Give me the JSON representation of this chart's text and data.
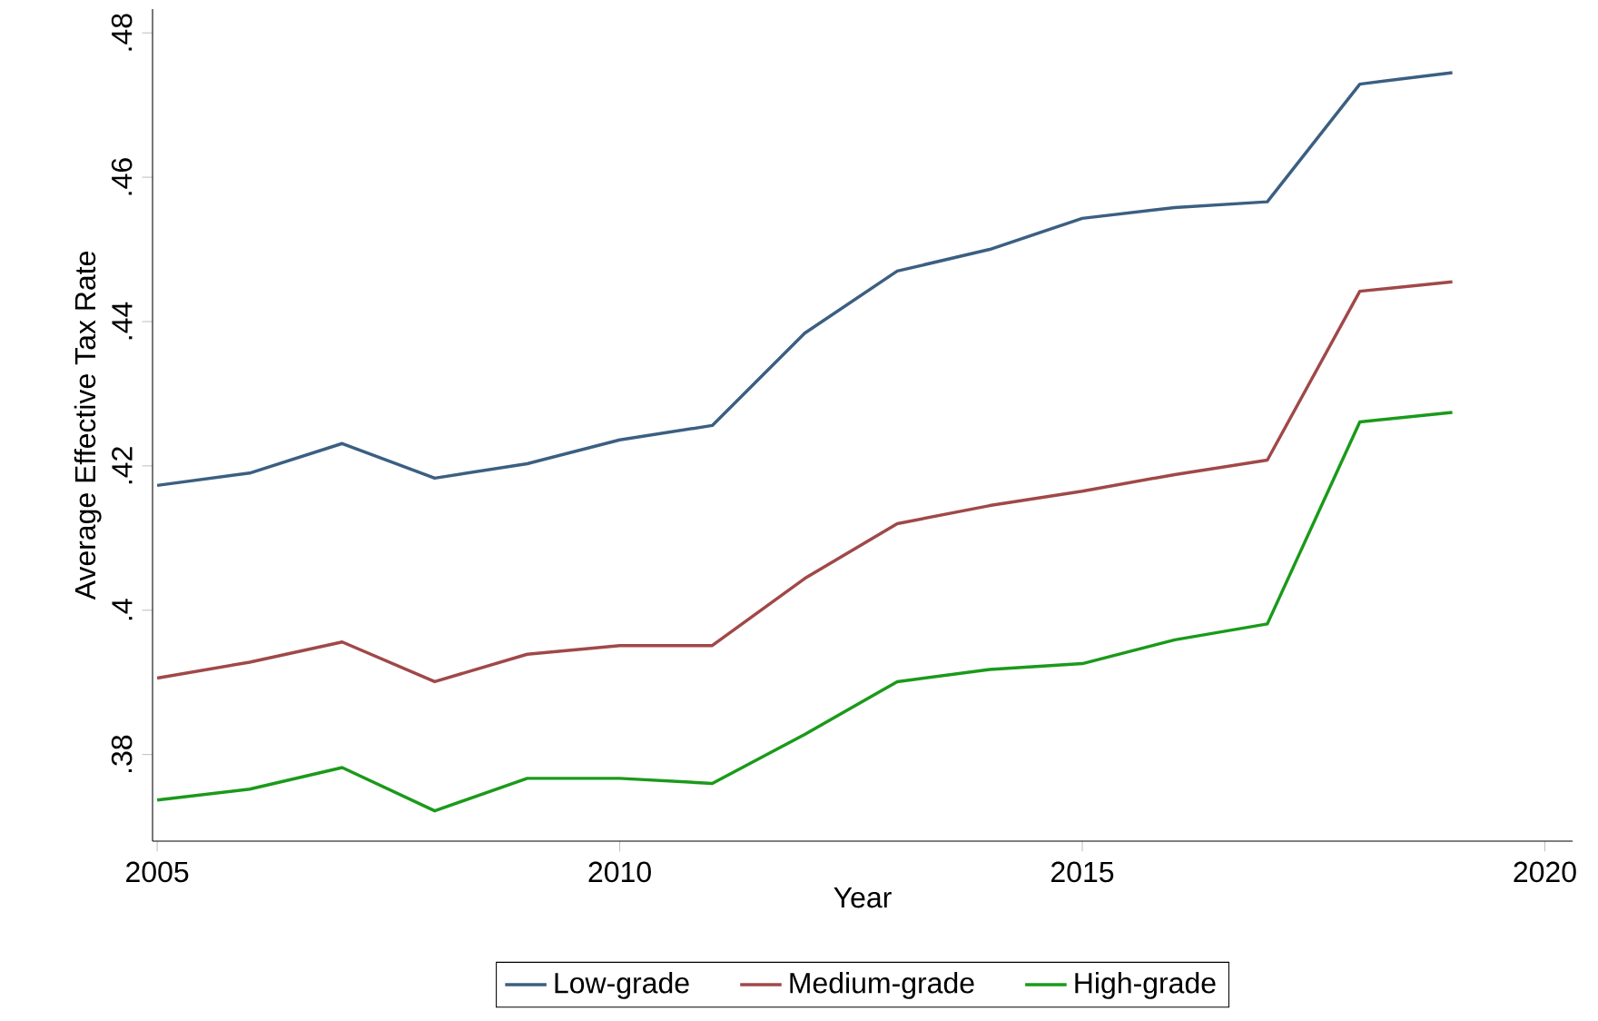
{
  "chart_data": {
    "type": "line",
    "xlabel": "Year",
    "ylabel": "Average Effective Tax Rate",
    "x": [
      2005,
      2006,
      2007,
      2008,
      2009,
      2010,
      2011,
      2012,
      2013,
      2014,
      2015,
      2016,
      2017,
      2018,
      2019
    ],
    "series": [
      {
        "name": "Low-grade",
        "color": "#3b5f82",
        "values": [
          0.4173,
          0.419,
          0.4231,
          0.4183,
          0.4203,
          0.4236,
          0.4256,
          0.4384,
          0.447,
          0.45,
          0.4543,
          0.4558,
          0.4566,
          0.4729,
          0.4745
        ]
      },
      {
        "name": "Medium-grade",
        "color": "#a04848",
        "values": [
          0.3906,
          0.3928,
          0.3956,
          0.3901,
          0.3939,
          0.3951,
          0.3951,
          0.4044,
          0.412,
          0.4145,
          0.4165,
          0.4188,
          0.4208,
          0.4442,
          0.4455
        ]
      },
      {
        "name": "High-grade",
        "color": "#1a9a1a",
        "values": [
          0.3737,
          0.3752,
          0.3782,
          0.3722,
          0.3767,
          0.3767,
          0.376,
          0.3828,
          0.3901,
          0.3918,
          0.3926,
          0.3959,
          0.3981,
          0.4261,
          0.4274
        ]
      }
    ],
    "xlim": [
      2004.95,
      2020.3
    ],
    "ylim": [
      0.368,
      0.4833
    ],
    "xticks": [
      2005,
      2010,
      2015,
      2020
    ],
    "yticks": [
      {
        "value": 0.38,
        "label": ".38"
      },
      {
        "value": 0.4,
        "label": ".4"
      },
      {
        "value": 0.42,
        "label": ".42"
      },
      {
        "value": 0.44,
        "label": ".44"
      },
      {
        "value": 0.46,
        "label": ".46"
      },
      {
        "value": 0.48,
        "label": ".48"
      }
    ],
    "grid": false,
    "legend": "bottom",
    "marker": "none",
    "line_style": "solid"
  }
}
